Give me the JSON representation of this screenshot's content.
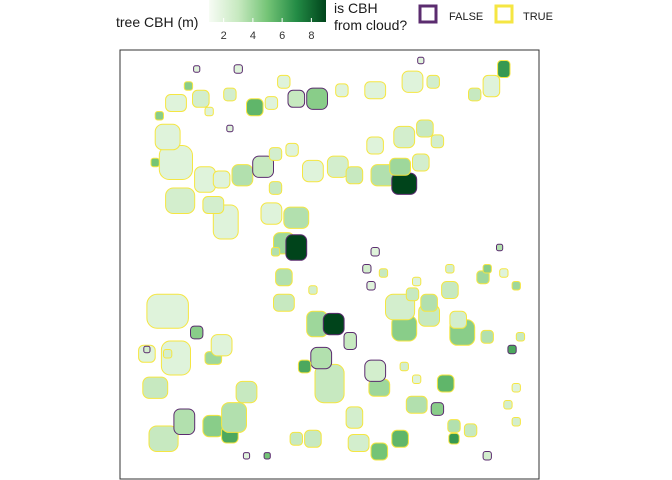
{
  "chart_data": {
    "type": "map",
    "title": "",
    "legend": {
      "fill": {
        "title": "tree CBH (m)",
        "ticks": [
          2,
          4,
          6,
          8
        ],
        "range": [
          1,
          9
        ],
        "colors": [
          "#f7fcf5",
          "#c7e9c0",
          "#74c476",
          "#238b45",
          "#00441b"
        ]
      },
      "outline": {
        "title_line1": "is CBH",
        "title_line2": "from cloud?",
        "entries": [
          {
            "label": "FALSE",
            "color": "#5b2c6f"
          },
          {
            "label": "TRUE",
            "color": "#f5e642"
          }
        ]
      }
    },
    "extent": {
      "x": [
        0,
        100
      ],
      "y": [
        0,
        100
      ]
    },
    "crowns": [
      {
        "x": 10,
        "y": 91,
        "w": 7,
        "h": 6,
        "v": 3,
        "c": true
      },
      {
        "x": 15,
        "y": 87,
        "w": 5,
        "h": 6,
        "v": 3.5,
        "c": false
      },
      {
        "x": 22,
        "y": 88,
        "w": 5,
        "h": 5,
        "v": 4.5,
        "c": true
      },
      {
        "x": 26,
        "y": 90,
        "w": 4,
        "h": 4,
        "v": 6,
        "c": true
      },
      {
        "x": 27,
        "y": 86,
        "w": 6,
        "h": 7,
        "v": 3.5,
        "c": true
      },
      {
        "x": 30,
        "y": 80,
        "w": 5,
        "h": 5,
        "v": 3,
        "c": true
      },
      {
        "x": 30,
        "y": 95,
        "w": 1.5,
        "h": 1.5,
        "v": 2,
        "c": false
      },
      {
        "x": 35,
        "y": 95,
        "w": 1.5,
        "h": 1.5,
        "v": 5,
        "c": false
      },
      {
        "x": 42,
        "y": 91,
        "w": 3,
        "h": 3,
        "v": 3,
        "c": true
      },
      {
        "x": 46,
        "y": 91,
        "w": 4,
        "h": 4,
        "v": 3,
        "c": true
      },
      {
        "x": 57,
        "y": 92,
        "w": 5,
        "h": 4,
        "v": 2.5,
        "c": true
      },
      {
        "x": 62,
        "y": 94,
        "w": 4,
        "h": 4,
        "v": 5,
        "c": true
      },
      {
        "x": 67,
        "y": 91,
        "w": 4,
        "h": 4,
        "v": 5.5,
        "c": true
      },
      {
        "x": 88,
        "y": 95,
        "w": 2,
        "h": 2,
        "v": 2.5,
        "c": false
      },
      {
        "x": 8,
        "y": 79,
        "w": 6,
        "h": 5,
        "v": 3,
        "c": true
      },
      {
        "x": 13,
        "y": 72,
        "w": 7,
        "h": 8,
        "v": 2,
        "c": true
      },
      {
        "x": 22,
        "y": 72,
        "w": 4,
        "h": 3,
        "v": 4,
        "c": true
      },
      {
        "x": 24,
        "y": 69,
        "w": 5,
        "h": 5,
        "v": 2,
        "c": true
      },
      {
        "x": 6,
        "y": 71,
        "w": 4,
        "h": 4,
        "v": 2,
        "c": true
      },
      {
        "x": 50,
        "y": 78,
        "w": 7,
        "h": 9,
        "v": 3,
        "c": true
      },
      {
        "x": 56,
        "y": 86,
        "w": 4,
        "h": 5,
        "v": 2.5,
        "c": true
      },
      {
        "x": 48,
        "y": 72,
        "w": 5,
        "h": 5,
        "v": 3.5,
        "c": false
      },
      {
        "x": 44,
        "y": 74,
        "w": 3,
        "h": 3,
        "v": 6,
        "c": true
      },
      {
        "x": 62,
        "y": 79,
        "w": 5,
        "h": 4,
        "v": 4,
        "c": true
      },
      {
        "x": 61,
        "y": 75,
        "w": 5,
        "h": 5,
        "v": 2.5,
        "c": false
      },
      {
        "x": 71,
        "y": 83,
        "w": 5,
        "h": 4,
        "v": 3.5,
        "c": true
      },
      {
        "x": 76,
        "y": 84,
        "w": 3,
        "h": 3,
        "v": 4.5,
        "c": false
      },
      {
        "x": 80,
        "y": 88,
        "w": 3,
        "h": 3,
        "v": 3.5,
        "c": true
      },
      {
        "x": 80,
        "y": 91,
        "w": 2.5,
        "h": 2.5,
        "v": 6.5,
        "c": true
      },
      {
        "x": 84,
        "y": 89,
        "w": 3,
        "h": 3,
        "v": 3,
        "c": true
      },
      {
        "x": 78,
        "y": 78,
        "w": 4,
        "h": 4,
        "v": 5.5,
        "c": true
      },
      {
        "x": 68,
        "y": 74,
        "w": 2,
        "h": 2,
        "v": 2.5,
        "c": true
      },
      {
        "x": 71,
        "y": 77,
        "w": 2,
        "h": 2,
        "v": 2,
        "c": true
      },
      {
        "x": 95,
        "y": 87,
        "w": 2,
        "h": 2,
        "v": 2.5,
        "c": true
      },
      {
        "x": 93,
        "y": 83,
        "w": 2,
        "h": 2,
        "v": 2.5,
        "c": true
      },
      {
        "x": 95,
        "y": 79,
        "w": 2,
        "h": 2,
        "v": 2,
        "c": true
      },
      {
        "x": 6,
        "y": 70,
        "w": 1.5,
        "h": 1.5,
        "v": 2.5,
        "c": false
      },
      {
        "x": 11,
        "y": 71,
        "w": 2,
        "h": 2,
        "v": 2.5,
        "c": true
      },
      {
        "x": 18,
        "y": 66,
        "w": 3,
        "h": 3,
        "v": 4.5,
        "c": false
      },
      {
        "x": 11,
        "y": 61,
        "w": 10,
        "h": 8,
        "v": 2,
        "c": true
      },
      {
        "x": 47,
        "y": 64,
        "w": 5,
        "h": 6,
        "v": 4,
        "c": true
      },
      {
        "x": 51,
        "y": 64,
        "w": 5,
        "h": 5,
        "v": 9,
        "c": false
      },
      {
        "x": 55,
        "y": 68,
        "w": 3,
        "h": 4,
        "v": 3,
        "c": false
      },
      {
        "x": 68,
        "y": 65,
        "w": 6,
        "h": 6,
        "v": 4.5,
        "c": true
      },
      {
        "x": 67,
        "y": 60,
        "w": 7,
        "h": 6,
        "v": 2.5,
        "c": true
      },
      {
        "x": 74,
        "y": 62,
        "w": 5,
        "h": 5,
        "v": 3,
        "c": true
      },
      {
        "x": 74,
        "y": 59,
        "w": 4,
        "h": 4,
        "v": 3.5,
        "c": true
      },
      {
        "x": 82,
        "y": 66,
        "w": 6,
        "h": 6,
        "v": 4.5,
        "c": true
      },
      {
        "x": 81,
        "y": 63,
        "w": 4,
        "h": 4,
        "v": 2.5,
        "c": true
      },
      {
        "x": 88,
        "y": 67,
        "w": 3,
        "h": 3,
        "v": 3.5,
        "c": true
      },
      {
        "x": 94,
        "y": 70,
        "w": 2,
        "h": 2,
        "v": 6,
        "c": false
      },
      {
        "x": 96,
        "y": 67,
        "w": 2,
        "h": 2,
        "v": 3,
        "c": true
      },
      {
        "x": 95,
        "y": 55,
        "w": 2,
        "h": 2,
        "v": 4,
        "c": true
      },
      {
        "x": 92,
        "y": 52,
        "w": 2,
        "h": 2,
        "v": 2,
        "c": true
      },
      {
        "x": 91,
        "y": 46,
        "w": 1.5,
        "h": 1.5,
        "v": 3.5,
        "c": false
      },
      {
        "x": 87,
        "y": 53,
        "w": 3,
        "h": 3,
        "v": 4,
        "c": true
      },
      {
        "x": 88,
        "y": 51,
        "w": 2,
        "h": 2,
        "v": 4.5,
        "c": true
      },
      {
        "x": 70,
        "y": 57,
        "w": 3,
        "h": 3,
        "v": 3,
        "c": true
      },
      {
        "x": 71,
        "y": 54,
        "w": 2,
        "h": 2,
        "v": 2,
        "c": true
      },
      {
        "x": 79,
        "y": 56,
        "w": 4,
        "h": 4,
        "v": 3,
        "c": true
      },
      {
        "x": 79,
        "y": 51,
        "w": 2,
        "h": 2,
        "v": 2.5,
        "c": true
      },
      {
        "x": 60,
        "y": 55,
        "w": 2,
        "h": 2,
        "v": 2,
        "c": false
      },
      {
        "x": 63,
        "y": 52,
        "w": 2,
        "h": 2,
        "v": 3,
        "c": true
      },
      {
        "x": 59,
        "y": 51,
        "w": 2,
        "h": 2,
        "v": 2.5,
        "c": false
      },
      {
        "x": 61,
        "y": 47,
        "w": 2,
        "h": 2,
        "v": 2,
        "c": false
      },
      {
        "x": 39,
        "y": 53,
        "w": 4,
        "h": 4,
        "v": 3.5,
        "c": true
      },
      {
        "x": 39,
        "y": 59,
        "w": 5,
        "h": 4,
        "v": 3,
        "c": true
      },
      {
        "x": 39,
        "y": 45,
        "w": 5,
        "h": 5,
        "v": 4,
        "c": true
      },
      {
        "x": 42,
        "y": 46,
        "w": 5,
        "h": 6,
        "v": 9,
        "c": false
      },
      {
        "x": 42,
        "y": 39,
        "w": 6,
        "h": 5,
        "v": 3.5,
        "c": true
      },
      {
        "x": 46,
        "y": 56,
        "w": 2,
        "h": 2,
        "v": 2.5,
        "c": true
      },
      {
        "x": 37,
        "y": 47,
        "w": 2,
        "h": 2,
        "v": 3.5,
        "c": true
      },
      {
        "x": 36,
        "y": 38,
        "w": 5,
        "h": 5,
        "v": 2,
        "c": true
      },
      {
        "x": 37,
        "y": 32,
        "w": 3,
        "h": 3,
        "v": 3,
        "c": true
      },
      {
        "x": 25,
        "y": 40,
        "w": 6,
        "h": 8,
        "v": 2,
        "c": true
      },
      {
        "x": 22,
        "y": 36,
        "w": 5,
        "h": 4,
        "v": 2.5,
        "c": true
      },
      {
        "x": 14,
        "y": 35,
        "w": 7,
        "h": 6,
        "v": 2.5,
        "c": true
      },
      {
        "x": 13,
        "y": 26,
        "w": 8,
        "h": 8,
        "v": 2,
        "c": true
      },
      {
        "x": 20,
        "y": 30,
        "w": 5,
        "h": 6,
        "v": 2,
        "c": true
      },
      {
        "x": 24,
        "y": 30,
        "w": 4,
        "h": 4,
        "v": 2,
        "c": true
      },
      {
        "x": 29,
        "y": 29,
        "w": 5,
        "h": 5,
        "v": 3.5,
        "c": true
      },
      {
        "x": 34,
        "y": 27,
        "w": 5,
        "h": 5,
        "v": 3,
        "c": false
      },
      {
        "x": 37,
        "y": 24,
        "w": 3,
        "h": 3,
        "v": 2.5,
        "c": true
      },
      {
        "x": 41,
        "y": 23,
        "w": 3,
        "h": 3,
        "v": 2,
        "c": true
      },
      {
        "x": 46,
        "y": 28,
        "w": 5,
        "h": 5,
        "v": 2,
        "c": true
      },
      {
        "x": 52,
        "y": 27,
        "w": 5,
        "h": 5,
        "v": 2.5,
        "c": true
      },
      {
        "x": 56,
        "y": 29,
        "w": 4,
        "h": 4,
        "v": 3,
        "c": true
      },
      {
        "x": 63,
        "y": 29,
        "w": 6,
        "h": 5,
        "v": 3.5,
        "c": true
      },
      {
        "x": 68,
        "y": 31,
        "w": 6,
        "h": 5,
        "v": 9,
        "c": false
      },
      {
        "x": 67,
        "y": 27,
        "w": 5,
        "h": 4,
        "v": 4,
        "c": true
      },
      {
        "x": 72,
        "y": 26,
        "w": 4,
        "h": 4,
        "v": 2.5,
        "c": true
      },
      {
        "x": 61,
        "y": 22,
        "w": 4,
        "h": 4,
        "v": 2,
        "c": true
      },
      {
        "x": 68,
        "y": 20,
        "w": 5,
        "h": 5,
        "v": 2.5,
        "c": true
      },
      {
        "x": 73,
        "y": 18,
        "w": 4,
        "h": 4,
        "v": 3,
        "c": true
      },
      {
        "x": 76,
        "y": 21,
        "w": 3,
        "h": 3,
        "v": 2.5,
        "c": true
      },
      {
        "x": 8,
        "y": 26,
        "w": 2,
        "h": 2,
        "v": 5,
        "c": true
      },
      {
        "x": 11,
        "y": 20,
        "w": 6,
        "h": 6,
        "v": 2,
        "c": true
      },
      {
        "x": 13,
        "y": 12,
        "w": 5,
        "h": 4,
        "v": 2,
        "c": true
      },
      {
        "x": 19,
        "y": 11,
        "w": 4,
        "h": 4,
        "v": 2.5,
        "c": true
      },
      {
        "x": 21,
        "y": 14,
        "w": 2,
        "h": 2,
        "v": 2,
        "c": true
      },
      {
        "x": 26,
        "y": 10,
        "w": 3,
        "h": 3,
        "v": 2.5,
        "c": true
      },
      {
        "x": 26,
        "y": 18,
        "w": 1.5,
        "h": 1.5,
        "v": 2,
        "c": false
      },
      {
        "x": 32,
        "y": 13,
        "w": 4,
        "h": 4,
        "v": 5.5,
        "c": true
      },
      {
        "x": 36,
        "y": 12,
        "w": 3,
        "h": 3,
        "v": 2,
        "c": true
      },
      {
        "x": 42,
        "y": 11,
        "w": 4,
        "h": 4,
        "v": 3,
        "c": false
      },
      {
        "x": 39,
        "y": 7,
        "w": 3,
        "h": 3,
        "v": 2,
        "c": true
      },
      {
        "x": 47,
        "y": 11,
        "w": 5,
        "h": 5,
        "v": 4.5,
        "c": false
      },
      {
        "x": 53,
        "y": 9,
        "w": 3,
        "h": 3,
        "v": 2,
        "c": true
      },
      {
        "x": 61,
        "y": 9,
        "w": 5,
        "h": 4,
        "v": 2,
        "c": true
      },
      {
        "x": 70,
        "y": 7,
        "w": 5,
        "h": 5,
        "v": 2,
        "c": true
      },
      {
        "x": 75,
        "y": 7,
        "w": 3,
        "h": 3,
        "v": 2.5,
        "c": true
      },
      {
        "x": 72,
        "y": 2,
        "w": 1.5,
        "h": 1.5,
        "v": 2,
        "c": false
      },
      {
        "x": 85,
        "y": 10,
        "w": 3,
        "h": 3,
        "v": 3,
        "c": true
      },
      {
        "x": 89,
        "y": 8,
        "w": 4,
        "h": 5,
        "v": 2,
        "c": true
      },
      {
        "x": 92,
        "y": 4,
        "w": 3,
        "h": 4,
        "v": 6.5,
        "c": true
      },
      {
        "x": 18,
        "y": 4,
        "w": 1.5,
        "h": 1.5,
        "v": 2,
        "c": false
      },
      {
        "x": 28,
        "y": 4,
        "w": 2,
        "h": 2,
        "v": 2,
        "c": false
      },
      {
        "x": 16,
        "y": 8,
        "w": 2,
        "h": 2,
        "v": 4.5,
        "c": true
      },
      {
        "x": 9,
        "y": 15,
        "w": 2,
        "h": 2,
        "v": 4.5,
        "c": true
      }
    ]
  }
}
